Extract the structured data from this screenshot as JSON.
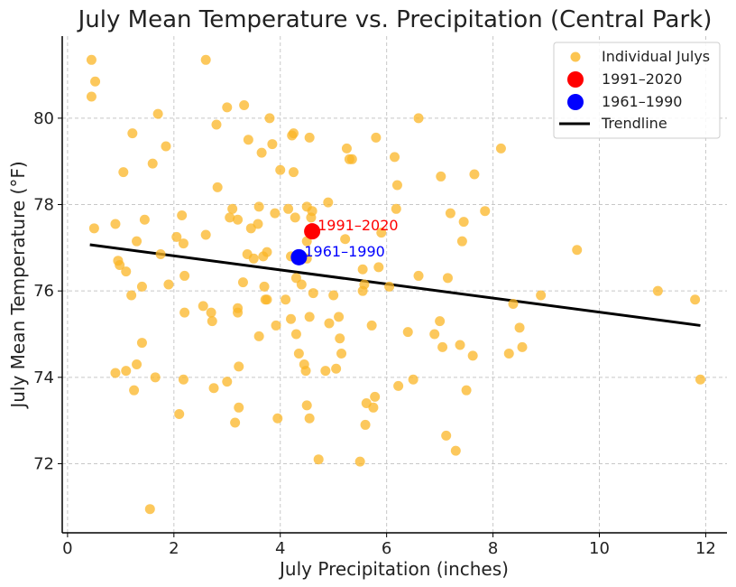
{
  "chart_data": {
    "type": "scatter",
    "title": "July Mean Temperature vs. Precipitation (Central Park)",
    "xlabel": "July Precipitation (inches)",
    "ylabel": "July Mean Temperature (°F)",
    "xlim": [
      -0.1,
      12.4
    ],
    "ylim": [
      70.4,
      81.9
    ],
    "xticks": [
      0,
      2,
      4,
      6,
      8,
      10,
      12
    ],
    "yticks": [
      72,
      74,
      76,
      78,
      80
    ],
    "grid": true,
    "legend_position": "top-right",
    "colors": {
      "individual": "#FBB626",
      "recent": "#FF0000",
      "past": "#0000FF",
      "trend": "#000000"
    },
    "series": [
      {
        "name": "Individual Julys",
        "points": [
          [
            0.45,
            81.35
          ],
          [
            0.52,
            80.85
          ],
          [
            0.45,
            80.5
          ],
          [
            0.5,
            77.45
          ],
          [
            0.9,
            77.55
          ],
          [
            0.95,
            76.7
          ],
          [
            0.98,
            76.6
          ],
          [
            1.1,
            76.45
          ],
          [
            1.05,
            78.75
          ],
          [
            0.9,
            74.1
          ],
          [
            1.1,
            74.15
          ],
          [
            1.2,
            75.9
          ],
          [
            1.25,
            73.7
          ],
          [
            1.3,
            74.3
          ],
          [
            1.22,
            79.65
          ],
          [
            1.3,
            77.15
          ],
          [
            1.45,
            77.65
          ],
          [
            1.4,
            76.1
          ],
          [
            1.4,
            74.8
          ],
          [
            1.55,
            70.95
          ],
          [
            1.6,
            78.95
          ],
          [
            1.65,
            74.0
          ],
          [
            1.7,
            80.1
          ],
          [
            1.75,
            76.85
          ],
          [
            1.85,
            79.35
          ],
          [
            1.9,
            76.15
          ],
          [
            2.05,
            77.25
          ],
          [
            2.1,
            73.15
          ],
          [
            2.15,
            77.75
          ],
          [
            2.18,
            77.1
          ],
          [
            2.2,
            76.35
          ],
          [
            2.2,
            75.5
          ],
          [
            2.18,
            73.95
          ],
          [
            2.6,
            81.35
          ],
          [
            2.55,
            75.65
          ],
          [
            2.6,
            77.3
          ],
          [
            2.7,
            75.5
          ],
          [
            2.72,
            75.3
          ],
          [
            2.75,
            73.75
          ],
          [
            2.8,
            79.85
          ],
          [
            2.82,
            78.4
          ],
          [
            3.0,
            80.25
          ],
          [
            3.05,
            77.7
          ],
          [
            3.0,
            73.9
          ],
          [
            3.1,
            77.9
          ],
          [
            3.15,
            72.95
          ],
          [
            3.2,
            77.65
          ],
          [
            3.2,
            75.6
          ],
          [
            3.2,
            75.5
          ],
          [
            3.22,
            74.25
          ],
          [
            3.22,
            73.3
          ],
          [
            3.3,
            76.2
          ],
          [
            3.32,
            80.3
          ],
          [
            3.38,
            76.85
          ],
          [
            3.4,
            79.5
          ],
          [
            3.45,
            77.45
          ],
          [
            3.5,
            76.75
          ],
          [
            3.58,
            77.55
          ],
          [
            3.6,
            77.95
          ],
          [
            3.6,
            74.95
          ],
          [
            3.65,
            79.2
          ],
          [
            3.68,
            76.8
          ],
          [
            3.7,
            76.1
          ],
          [
            3.72,
            75.8
          ],
          [
            3.75,
            75.8
          ],
          [
            3.75,
            76.9
          ],
          [
            3.8,
            80.0
          ],
          [
            3.85,
            79.4
          ],
          [
            3.9,
            77.8
          ],
          [
            3.92,
            75.2
          ],
          [
            3.95,
            73.05
          ],
          [
            4.0,
            78.8
          ],
          [
            4.1,
            75.8
          ],
          [
            4.15,
            77.9
          ],
          [
            4.2,
            75.35
          ],
          [
            4.2,
            76.8
          ],
          [
            4.22,
            79.6
          ],
          [
            4.25,
            79.65
          ],
          [
            4.25,
            78.75
          ],
          [
            4.28,
            77.7
          ],
          [
            4.3,
            76.3
          ],
          [
            4.3,
            75.0
          ],
          [
            4.35,
            74.55
          ],
          [
            4.4,
            76.15
          ],
          [
            4.45,
            74.3
          ],
          [
            4.48,
            74.15
          ],
          [
            4.5,
            73.35
          ],
          [
            4.5,
            77.95
          ],
          [
            4.5,
            77.15
          ],
          [
            4.5,
            76.75
          ],
          [
            4.55,
            73.05
          ],
          [
            4.55,
            75.4
          ],
          [
            4.55,
            79.55
          ],
          [
            4.58,
            77.7
          ],
          [
            4.6,
            77.85
          ],
          [
            4.62,
            75.95
          ],
          [
            4.72,
            72.1
          ],
          [
            4.85,
            74.15
          ],
          [
            4.9,
            78.05
          ],
          [
            4.92,
            75.25
          ],
          [
            5.0,
            75.9
          ],
          [
            5.05,
            74.2
          ],
          [
            5.1,
            75.4
          ],
          [
            5.12,
            74.9
          ],
          [
            5.15,
            74.55
          ],
          [
            5.22,
            77.2
          ],
          [
            5.25,
            79.3
          ],
          [
            5.3,
            79.05
          ],
          [
            5.35,
            79.05
          ],
          [
            5.5,
            72.05
          ],
          [
            5.55,
            76.5
          ],
          [
            5.55,
            76.0
          ],
          [
            5.58,
            76.15
          ],
          [
            5.6,
            72.9
          ],
          [
            5.62,
            73.4
          ],
          [
            5.72,
            75.2
          ],
          [
            5.75,
            73.3
          ],
          [
            5.78,
            73.55
          ],
          [
            5.8,
            79.55
          ],
          [
            5.85,
            76.55
          ],
          [
            5.9,
            77.35
          ],
          [
            6.05,
            76.1
          ],
          [
            6.15,
            79.1
          ],
          [
            6.18,
            77.9
          ],
          [
            6.2,
            78.45
          ],
          [
            6.22,
            73.8
          ],
          [
            6.4,
            75.05
          ],
          [
            6.5,
            73.95
          ],
          [
            6.6,
            76.35
          ],
          [
            6.6,
            80.0
          ],
          [
            6.9,
            75.0
          ],
          [
            7.0,
            75.3
          ],
          [
            7.02,
            78.65
          ],
          [
            7.05,
            74.7
          ],
          [
            7.12,
            72.65
          ],
          [
            7.15,
            76.3
          ],
          [
            7.2,
            77.8
          ],
          [
            7.3,
            72.3
          ],
          [
            7.38,
            74.75
          ],
          [
            7.42,
            77.15
          ],
          [
            7.45,
            77.6
          ],
          [
            7.5,
            73.7
          ],
          [
            7.62,
            74.5
          ],
          [
            7.65,
            78.7
          ],
          [
            7.85,
            77.85
          ],
          [
            8.15,
            79.3
          ],
          [
            8.3,
            74.55
          ],
          [
            8.38,
            75.7
          ],
          [
            8.5,
            75.15
          ],
          [
            8.55,
            74.7
          ],
          [
            8.9,
            75.9
          ],
          [
            9.58,
            76.95
          ],
          [
            11.1,
            76.0
          ],
          [
            11.8,
            75.8
          ],
          [
            11.9,
            73.95
          ]
        ]
      },
      {
        "name": "1991–2020",
        "points": [
          [
            4.6,
            77.38
          ]
        ],
        "label": "1991–2020"
      },
      {
        "name": "1961–1990",
        "points": [
          [
            4.35,
            76.78
          ]
        ],
        "label": "1961–1990"
      },
      {
        "name": "Trendline",
        "line": [
          [
            0.42,
            77.07
          ],
          [
            11.9,
            75.2
          ]
        ]
      }
    ]
  }
}
